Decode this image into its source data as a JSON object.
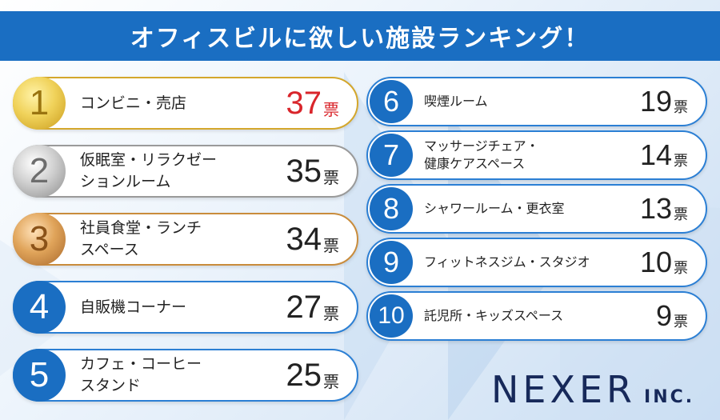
{
  "title": "オフィスビルに欲しい施設ランキング！",
  "vote_unit": "票",
  "logo": {
    "main": "NEXER",
    "sub": "INC."
  },
  "rankings": [
    {
      "rank": "1",
      "label": "コンビニ・売店",
      "votes": "37"
    },
    {
      "rank": "2",
      "label": "仮眠室・リラクゼー\nションルーム",
      "votes": "35"
    },
    {
      "rank": "3",
      "label": "社員食堂・ランチ\nスペース",
      "votes": "34"
    },
    {
      "rank": "4",
      "label": "自販機コーナー",
      "votes": "27"
    },
    {
      "rank": "5",
      "label": "カフェ・コーヒー\nスタンド",
      "votes": "25"
    },
    {
      "rank": "6",
      "label": "喫煙ルーム",
      "votes": "19"
    },
    {
      "rank": "7",
      "label": "マッサージチェア・\n健康ケアスペース",
      "votes": "14"
    },
    {
      "rank": "8",
      "label": "シャワールーム・更衣室",
      "votes": "13"
    },
    {
      "rank": "9",
      "label": "フィットネスジム・スタジオ",
      "votes": "10"
    },
    {
      "rank": "10",
      "label": "託児所・キッズスペース",
      "votes": "9"
    }
  ],
  "colors": {
    "accent_blue": "#1a6ec2",
    "top_vote_red": "#d9252b",
    "gold": "#d4a72c",
    "silver": "#9a9a9a",
    "bronze": "#c98c3c",
    "logo_navy": "#17295a"
  },
  "icons": {
    "rank1_badge": "gold-medal-laurel-icon",
    "rank2_badge": "silver-medal-icon",
    "rank3_badge": "bronze-medal-icon"
  }
}
